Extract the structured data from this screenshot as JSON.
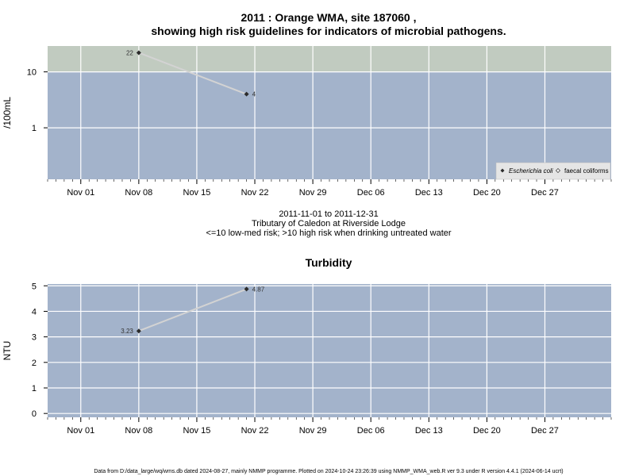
{
  "chart1": {
    "title_line1": "2011 : Orange WMA, site 187060 ,",
    "title_line2": "showing high risk guidelines for indicators of microbial pathogens.",
    "ylabel": "/100mL",
    "date_range": "2011-11-01 to 2011-12-31",
    "site_desc": "Tributary of Caledon at Riverside Lodge",
    "risk_note": "<=10 low-med risk; >10 high risk when drinking untreated water",
    "legend": {
      "ecoli": "Escherichia coli",
      "faecal": "faecal coliforms"
    }
  },
  "chart2": {
    "title": "Turbidity",
    "ylabel": "NTU"
  },
  "footer": "Data from D:/data_large/wq/wms.db dated 2024-08-27, mainly NMMP programme. Plotted on 2024-10-24 23:26:39 using NMMP_WMA_web.R ver 9.3 under R version 4.4.1 (2024-06-14 ucrt)",
  "colors": {
    "panel": "#a3b3cb",
    "high_risk_band": "#c1cbc0",
    "grid": "#ffffff",
    "line": "#d3d3d3",
    "point": "#2b2b2b"
  },
  "chart_data": [
    {
      "type": "line",
      "scale": "log",
      "x_axis": {
        "range": [
          "2011-10-28",
          "2012-01-04"
        ],
        "ticks": [
          "2011-11-01",
          "2011-11-08",
          "2011-11-15",
          "2011-11-22",
          "2011-11-29",
          "2011-12-06",
          "2011-12-13",
          "2011-12-20",
          "2011-12-27"
        ],
        "tick_labels": [
          "Nov 01",
          "Nov 08",
          "Nov 15",
          "Nov 22",
          "Nov 29",
          "Dec 06",
          "Dec 13",
          "Dec 20",
          "Dec 27"
        ]
      },
      "y_axis": {
        "ticks": [
          1,
          10
        ],
        "tick_labels": [
          "1",
          "10"
        ],
        "range": [
          0.12,
          29
        ]
      },
      "high_risk_threshold": 10,
      "series": [
        {
          "name": "Escherichia coli",
          "x": [
            "2011-11-08",
            "2011-11-21"
          ],
          "values": [
            22,
            4
          ],
          "labels": [
            "22",
            "4"
          ]
        }
      ],
      "grid": true,
      "legend_position": "bottom-right"
    },
    {
      "type": "line",
      "title": "Turbidity",
      "ylabel": "NTU",
      "x_axis": {
        "range": [
          "2011-10-28",
          "2012-01-04"
        ],
        "ticks": [
          "2011-11-01",
          "2011-11-08",
          "2011-11-15",
          "2011-11-22",
          "2011-11-29",
          "2011-12-06",
          "2011-12-13",
          "2011-12-20",
          "2011-12-27"
        ],
        "tick_labels": [
          "Nov 01",
          "Nov 08",
          "Nov 15",
          "Nov 22",
          "Nov 29",
          "Dec 06",
          "Dec 13",
          "Dec 20",
          "Dec 27"
        ]
      },
      "y_axis": {
        "ticks": [
          0,
          1,
          2,
          3,
          4,
          5
        ],
        "tick_labels": [
          "0",
          "1",
          "2",
          "3",
          "4",
          "5"
        ],
        "range": [
          -0.15,
          5.07
        ]
      },
      "series": [
        {
          "x": [
            "2011-11-08",
            "2011-11-21"
          ],
          "values": [
            3.23,
            4.87
          ],
          "labels": [
            "3.23",
            "4.87"
          ]
        }
      ],
      "grid": true
    }
  ]
}
